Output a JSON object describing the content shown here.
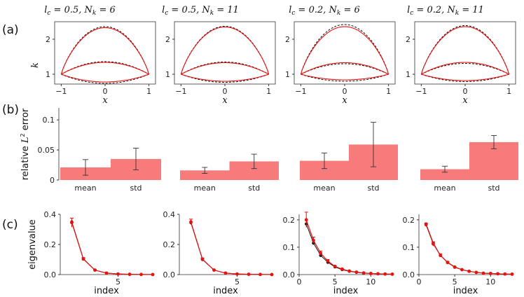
{
  "titles": [
    [
      "l",
      "c",
      " = 0.5, ",
      "N",
      "k",
      " = 6"
    ],
    [
      "l",
      "c",
      " = 0.5, ",
      "N",
      "k",
      " = 11"
    ],
    [
      "l",
      "c",
      " = 0.2, ",
      "N",
      "k",
      " = 6"
    ],
    [
      "l",
      "c",
      " = 0.2, ",
      "N",
      "k",
      " = 11"
    ]
  ],
  "panel_labels": [
    "(a)",
    "(b)",
    "(c)"
  ],
  "colors": {
    "red": "#e8120f",
    "bar": "#f87b7b",
    "black": "#111111",
    "axis": "#333333"
  },
  "chart_data": [
    {
      "type": "line",
      "name": "row-a",
      "xlabel": "x",
      "ylabel": "k",
      "xlim": [
        -1.15,
        1.15
      ],
      "ylim": [
        0.72,
        2.5
      ],
      "xticks": [
        -1,
        0,
        1
      ],
      "yticks": [
        1,
        2
      ],
      "panels": [
        {
          "top": 2.33,
          "bottom": 0.78,
          "middle": 1.34,
          "top_ref": 2.36,
          "bottom_ref": 0.74,
          "middle_ref": 1.36
        },
        {
          "top": 2.35,
          "bottom": 0.8,
          "middle": 1.33,
          "top_ref": 2.37,
          "bottom_ref": 0.77,
          "middle_ref": 1.35
        },
        {
          "top": 2.36,
          "bottom": 0.84,
          "middle": 1.33,
          "top_ref": 2.42,
          "bottom_ref": 0.8,
          "middle_ref": 1.3
        },
        {
          "top": 2.36,
          "bottom": 0.82,
          "middle": 1.34,
          "top_ref": 2.39,
          "bottom_ref": 0.79,
          "middle_ref": 1.31
        }
      ]
    },
    {
      "type": "bar",
      "name": "row-b",
      "ylabel": "relative L2 error",
      "ylabel_parts": [
        "relative ",
        "L",
        "2",
        " error"
      ],
      "categories": [
        "mean",
        "std"
      ],
      "ylim": [
        0,
        0.12
      ],
      "yticks": [
        "0",
        "0.05",
        "0.1"
      ],
      "yticks_values": [
        0,
        0.05,
        0.1
      ],
      "panels": [
        {
          "values": [
            0.021,
            0.035
          ],
          "errors": [
            0.013,
            0.018
          ]
        },
        {
          "values": [
            0.016,
            0.031
          ],
          "errors": [
            0.005,
            0.012
          ]
        },
        {
          "values": [
            0.032,
            0.059
          ],
          "errors": [
            0.013,
            0.037
          ]
        },
        {
          "values": [
            0.018,
            0.063
          ],
          "errors": [
            0.005,
            0.011
          ]
        }
      ]
    },
    {
      "type": "line",
      "name": "row-c",
      "xlabel": "index",
      "ylabel": "eigenvalue",
      "panels": [
        {
          "ylim": [
            0,
            0.4
          ],
          "yticks": [
            "0.0",
            "0.2",
            "0.4"
          ],
          "yticks_values": [
            0,
            0.2,
            0.4
          ],
          "xlim": [
            0,
            8
          ],
          "xticks": [
            "5"
          ],
          "xticks_values": [
            5
          ],
          "x": [
            1,
            2,
            3,
            4,
            5,
            6,
            7,
            8
          ],
          "reference": [
            0.35,
            0.105,
            0.03,
            0.01,
            0.004,
            0.002,
            0.001,
            0.0005
          ],
          "estimate": [
            0.345,
            0.103,
            0.03,
            0.01,
            0.004,
            0.002,
            0.001,
            0.0005
          ],
          "errors": [
            0.03,
            0.01,
            0.004,
            0.002,
            0.001,
            0.001,
            0.0005,
            0.0003
          ]
        },
        {
          "ylim": [
            0,
            0.4
          ],
          "yticks": [
            "0.0",
            "0.2",
            "0.4"
          ],
          "yticks_values": [
            0,
            0.2,
            0.4
          ],
          "xlim": [
            0,
            8
          ],
          "xticks": [
            "5"
          ],
          "xticks_values": [
            5
          ],
          "x": [
            1,
            2,
            3,
            4,
            5,
            6,
            7,
            8
          ],
          "reference": [
            0.345,
            0.1,
            0.03,
            0.01,
            0.004,
            0.002,
            0.001,
            0.0005
          ],
          "estimate": [
            0.35,
            0.103,
            0.03,
            0.01,
            0.004,
            0.002,
            0.001,
            0.0005
          ],
          "errors": [
            0.018,
            0.008,
            0.003,
            0.001,
            0.001,
            0.0005,
            0.0003,
            0.0002
          ]
        },
        {
          "ylim": [
            0,
            0.22
          ],
          "yticks": [
            "0.0",
            "0.1",
            "0.2"
          ],
          "yticks_values": [
            0,
            0.1,
            0.2
          ],
          "xlim": [
            0,
            13
          ],
          "xticks": [
            "0",
            "5",
            "10"
          ],
          "xticks_values": [
            0,
            5,
            10
          ],
          "x": [
            1,
            2,
            3,
            4,
            5,
            6,
            7,
            8,
            9,
            10,
            11,
            12,
            13
          ],
          "reference": [
            0.185,
            0.115,
            0.07,
            0.045,
            0.028,
            0.018,
            0.012,
            0.008,
            0.005,
            0.004,
            0.003,
            0.002,
            0.0015
          ],
          "estimate": [
            0.2,
            0.125,
            0.078,
            0.05,
            0.03,
            0.02,
            0.013,
            0.009,
            0.006,
            0.004,
            0.003,
            0.002,
            0.0015
          ],
          "errors": [
            0.028,
            0.012,
            0.008,
            0.005,
            0.003,
            0.002,
            0.0015,
            0.001,
            0.001,
            0.0008,
            0.0005,
            0.0004,
            0.0003
          ]
        },
        {
          "ylim": [
            0,
            0.22
          ],
          "yticks": [
            "0.0",
            "0.1",
            "0.2"
          ],
          "yticks_values": [
            0,
            0.1,
            0.2
          ],
          "xlim": [
            0,
            13
          ],
          "xticks": [
            "0",
            "5",
            "10"
          ],
          "xticks_values": [
            0,
            5,
            10
          ],
          "x": [
            1,
            2,
            3,
            4,
            5,
            6,
            7,
            8,
            9,
            10,
            11,
            12,
            13
          ],
          "reference": [
            0.185,
            0.115,
            0.07,
            0.045,
            0.028,
            0.018,
            0.012,
            0.008,
            0.005,
            0.004,
            0.003,
            0.002,
            0.0015
          ],
          "estimate": [
            0.182,
            0.112,
            0.07,
            0.044,
            0.027,
            0.018,
            0.012,
            0.008,
            0.005,
            0.004,
            0.003,
            0.002,
            0.0015
          ],
          "errors": [
            0.006,
            0.008,
            0.006,
            0.004,
            0.002,
            0.0015,
            0.001,
            0.001,
            0.0008,
            0.0006,
            0.0004,
            0.0003,
            0.0002
          ]
        }
      ]
    }
  ]
}
